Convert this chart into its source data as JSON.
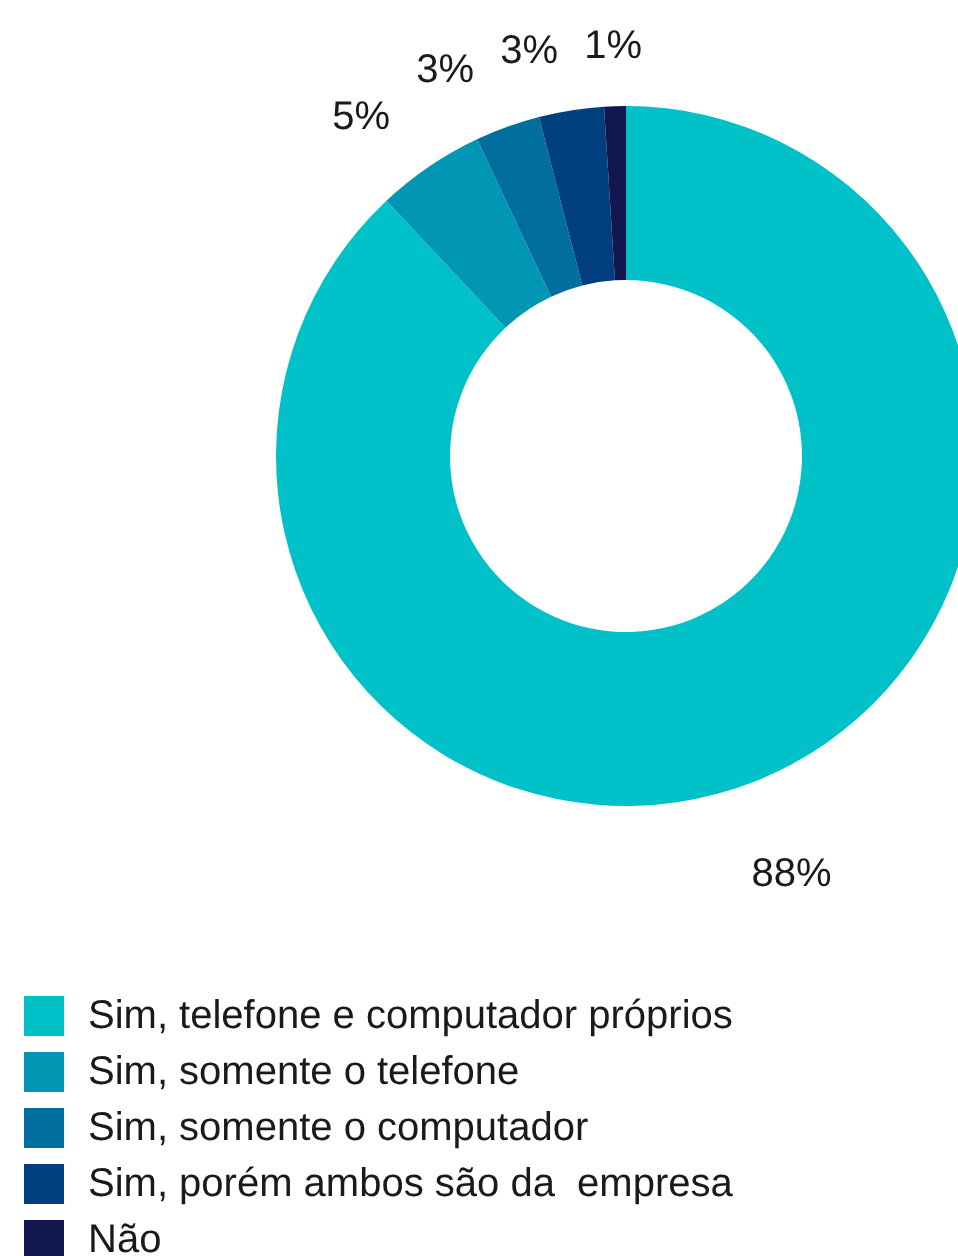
{
  "chart_data": {
    "type": "donut",
    "categories": [
      "Sim, telefone e computador próprios",
      "Sim, somente o telefone",
      "Sim, somente o computador",
      "Sim, porém ambos são da  empresa",
      "Não"
    ],
    "values": [
      88,
      5,
      3,
      3,
      1
    ],
    "value_labels": [
      "88%",
      "5%",
      "3%",
      "3%",
      "1%"
    ],
    "colors": [
      "#00c0c8",
      "#0096b4",
      "#006e9e",
      "#003f7d",
      "#12174f"
    ],
    "legend": "bottom"
  }
}
